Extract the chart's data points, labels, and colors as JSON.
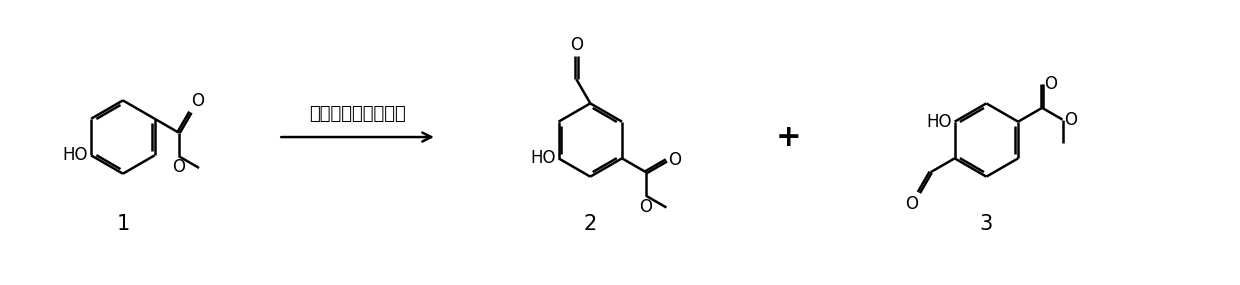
{
  "background_color": "#ffffff",
  "line_color": "#000000",
  "line_width": 1.8,
  "arrow_text": "乌洛托品，三氟乙酸",
  "compound_labels": [
    "1",
    "2",
    "3"
  ],
  "plus_sign": "+",
  "fig_width": 12.4,
  "fig_height": 2.85,
  "dpi": 100,
  "font_size_label": 15,
  "font_size_arrow": 13,
  "font_size_plus": 22,
  "font_size_atom": 12
}
